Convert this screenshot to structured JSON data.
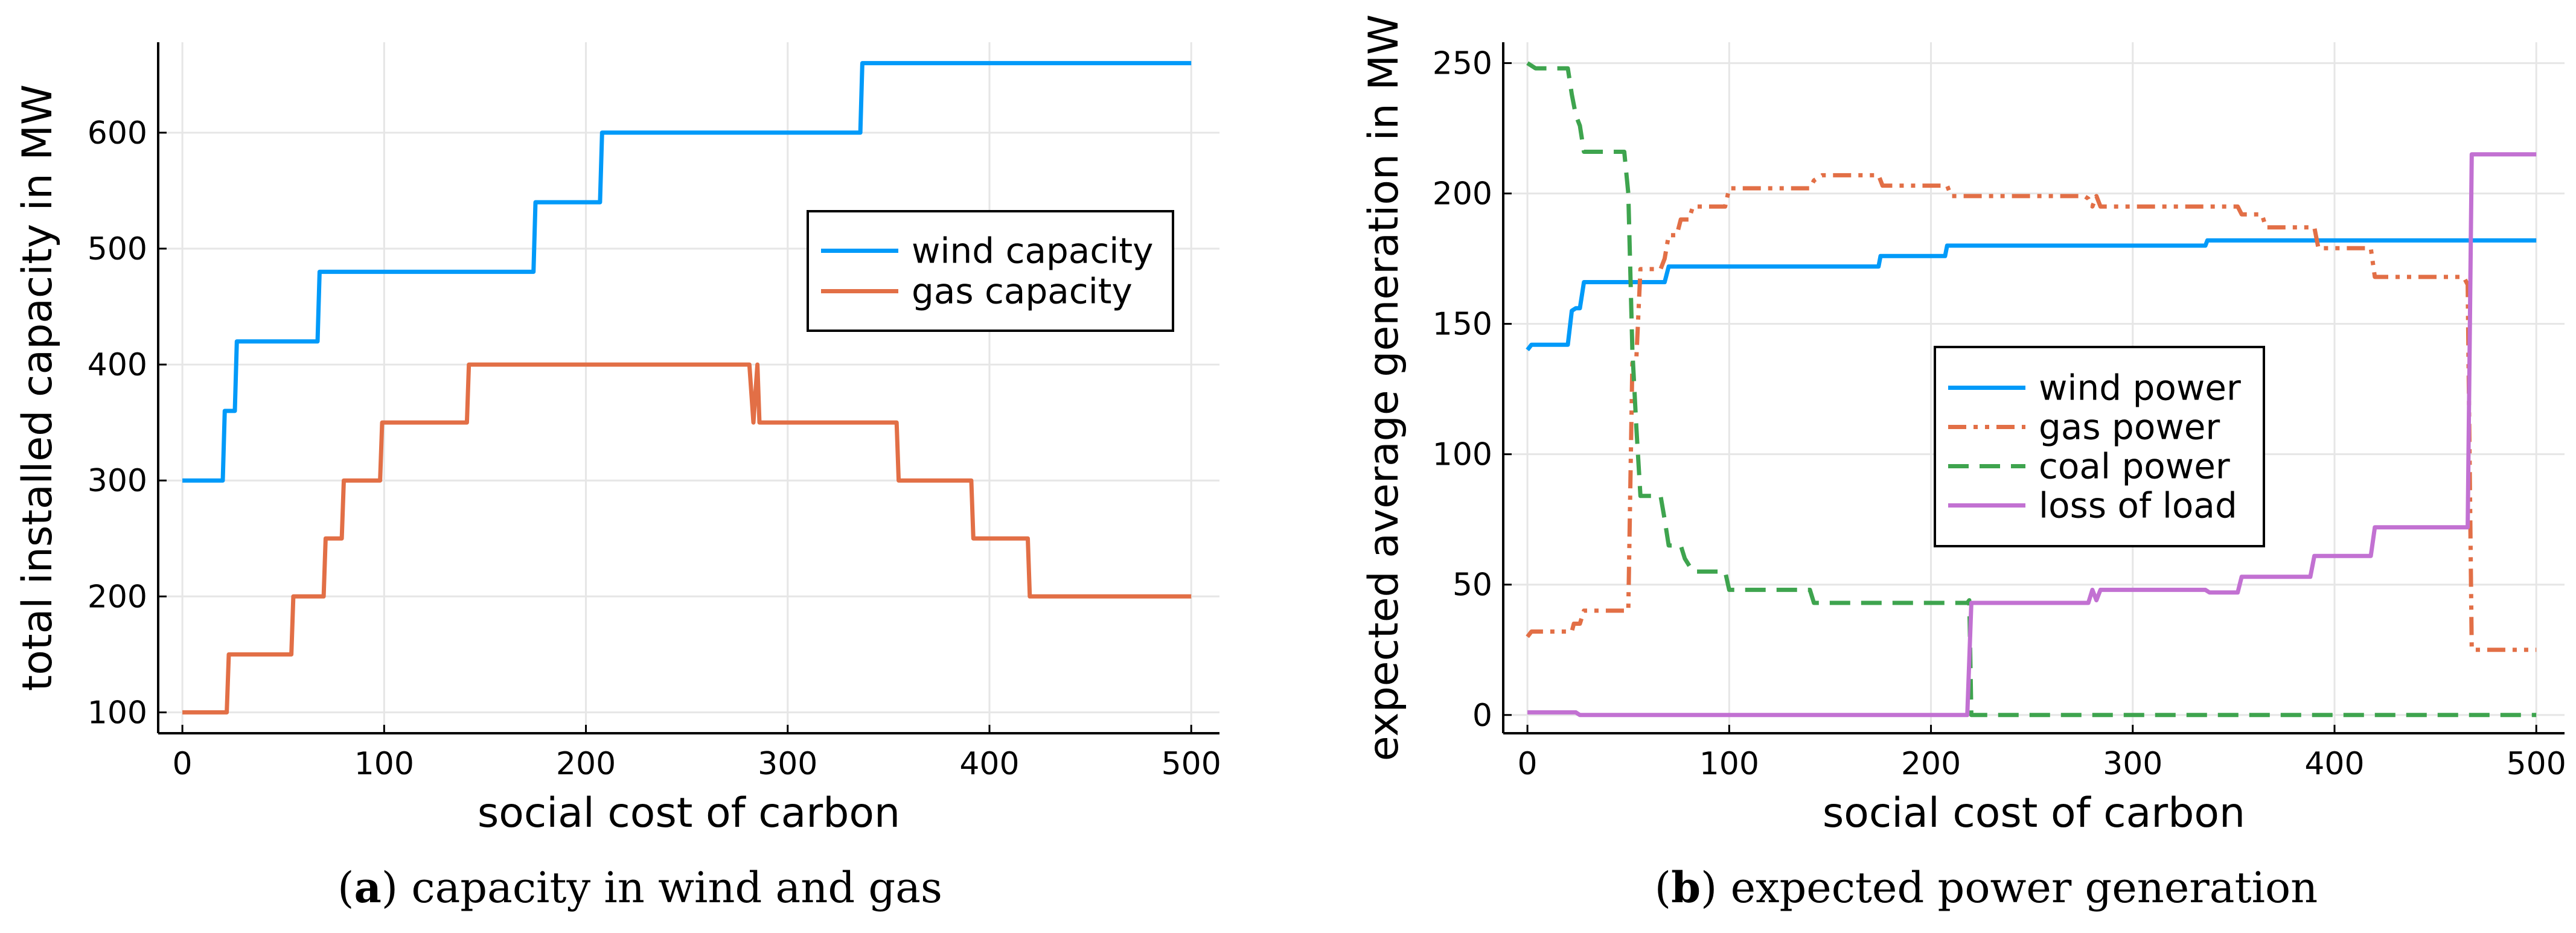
{
  "chart_data": [
    {
      "type": "line",
      "panel": "a",
      "caption_letter": "a",
      "caption_text": "capacity in wind and gas",
      "caption_paren_open": "(",
      "caption_paren_close": ")",
      "xlabel": "social cost of carbon",
      "ylabel": "total installed capacity in MW",
      "xlim": [
        -12,
        514
      ],
      "ylim": [
        82,
        678
      ],
      "xticks": [
        0,
        100,
        200,
        300,
        400,
        500
      ],
      "yticks": [
        100,
        200,
        300,
        400,
        500,
        600
      ],
      "grid": true,
      "legend_position": "right",
      "series": [
        {
          "name": "wind capacity",
          "color": "#009af9",
          "dash": "solid",
          "points": [
            [
              0,
              300
            ],
            [
              20,
              300
            ],
            [
              21,
              360
            ],
            [
              26,
              360
            ],
            [
              27,
              420
            ],
            [
              67,
              420
            ],
            [
              68,
              480
            ],
            [
              174,
              480
            ],
            [
              175,
              540
            ],
            [
              207,
              540
            ],
            [
              208,
              600
            ],
            [
              336,
              600
            ],
            [
              337,
              660
            ],
            [
              500,
              660
            ]
          ]
        },
        {
          "name": "gas capacity",
          "color": "#e26f46",
          "dash": "solid",
          "points": [
            [
              0,
              100
            ],
            [
              22,
              100
            ],
            [
              23,
              150
            ],
            [
              54,
              150
            ],
            [
              55,
              200
            ],
            [
              70,
              200
            ],
            [
              71,
              250
            ],
            [
              79,
              250
            ],
            [
              80,
              300
            ],
            [
              98,
              300
            ],
            [
              99,
              350
            ],
            [
              141,
              350
            ],
            [
              142,
              400
            ],
            [
              281,
              400
            ],
            [
              283,
              350
            ],
            [
              285,
              400
            ],
            [
              286,
              350
            ],
            [
              354,
              350
            ],
            [
              355,
              300
            ],
            [
              391,
              300
            ],
            [
              392,
              250
            ],
            [
              419,
              250
            ],
            [
              420,
              200
            ],
            [
              500,
              200
            ]
          ]
        }
      ]
    },
    {
      "type": "line",
      "panel": "b",
      "caption_letter": "b",
      "caption_text": "expected power generation",
      "caption_paren_open": "(",
      "caption_paren_close": ")",
      "xlabel": "social cost of carbon",
      "ylabel": "expected average generation in MW",
      "xlim": [
        -12,
        514
      ],
      "ylim": [
        -7,
        258
      ],
      "xticks": [
        0,
        100,
        200,
        300,
        400,
        500
      ],
      "yticks": [
        0,
        50,
        100,
        150,
        200,
        250
      ],
      "grid": true,
      "legend_position": "center",
      "series": [
        {
          "name": "wind power",
          "color": "#009af9",
          "dash": "solid",
          "points": [
            [
              0,
              140
            ],
            [
              2,
              142
            ],
            [
              20,
              142
            ],
            [
              22,
              155
            ],
            [
              24,
              156
            ],
            [
              26,
              156
            ],
            [
              28,
              166
            ],
            [
              68,
              166
            ],
            [
              70,
              172
            ],
            [
              174,
              172
            ],
            [
              175,
              176
            ],
            [
              207,
              176
            ],
            [
              208,
              180
            ],
            [
              336,
              180
            ],
            [
              337,
              182
            ],
            [
              500,
              182
            ]
          ]
        },
        {
          "name": "gas power",
          "color": "#e26f46",
          "dash": "dashdot",
          "points": [
            [
              0,
              30
            ],
            [
              2,
              32
            ],
            [
              22,
              32
            ],
            [
              23,
              35
            ],
            [
              26,
              35
            ],
            [
              28,
              40
            ],
            [
              48,
              40
            ],
            [
              50,
              40
            ],
            [
              52,
              135
            ],
            [
              54,
              137
            ],
            [
              56,
              171
            ],
            [
              66,
              171
            ],
            [
              68,
              175
            ],
            [
              70,
              184
            ],
            [
              74,
              184
            ],
            [
              76,
              190
            ],
            [
              80,
              190
            ],
            [
              82,
              195
            ],
            [
              98,
              195
            ],
            [
              100,
              202
            ],
            [
              140,
              202
            ],
            [
              142,
              205
            ],
            [
              146,
              207
            ],
            [
              174,
              207
            ],
            [
              176,
              203
            ],
            [
              208,
              203
            ],
            [
              210,
              199
            ],
            [
              276,
              199
            ],
            [
              278,
              198
            ],
            [
              280,
              195
            ],
            [
              282,
              199
            ],
            [
              284,
              195
            ],
            [
              352,
              195
            ],
            [
              354,
              192
            ],
            [
              364,
              192
            ],
            [
              366,
              187
            ],
            [
              390,
              187
            ],
            [
              392,
              179
            ],
            [
              418,
              179
            ],
            [
              420,
              168
            ],
            [
              464,
              168
            ],
            [
              466,
              165
            ],
            [
              468,
              25
            ],
            [
              500,
              25
            ]
          ]
        },
        {
          "name": "coal power",
          "color": "#3ea44e",
          "dash": "dashed",
          "points": [
            [
              0,
              250
            ],
            [
              4,
              248
            ],
            [
              20,
              248
            ],
            [
              22,
              238
            ],
            [
              24,
              230
            ],
            [
              26,
              226
            ],
            [
              28,
              216
            ],
            [
              48,
              216
            ],
            [
              50,
              200
            ],
            [
              52,
              140
            ],
            [
              54,
              110
            ],
            [
              56,
              84
            ],
            [
              66,
              84
            ],
            [
              68,
              75
            ],
            [
              70,
              65
            ],
            [
              76,
              65
            ],
            [
              78,
              60
            ],
            [
              82,
              55
            ],
            [
              98,
              55
            ],
            [
              100,
              48
            ],
            [
              140,
              48
            ],
            [
              142,
              43
            ],
            [
              218,
              43
            ],
            [
              219,
              44
            ],
            [
              220,
              0
            ],
            [
              500,
              0
            ]
          ]
        },
        {
          "name": "loss of load",
          "color": "#c271d2",
          "dash": "solid",
          "points": [
            [
              0,
              1
            ],
            [
              24,
              1
            ],
            [
              26,
              0
            ],
            [
              218,
              0
            ],
            [
              220,
              43
            ],
            [
              278,
              43
            ],
            [
              280,
              48
            ],
            [
              282,
              44
            ],
            [
              284,
              48
            ],
            [
              336,
              48
            ],
            [
              338,
              47
            ],
            [
              352,
              47
            ],
            [
              354,
              53
            ],
            [
              388,
              53
            ],
            [
              390,
              61
            ],
            [
              418,
              61
            ],
            [
              420,
              72
            ],
            [
              466,
              72
            ],
            [
              468,
              215
            ],
            [
              500,
              215
            ]
          ]
        }
      ]
    }
  ]
}
